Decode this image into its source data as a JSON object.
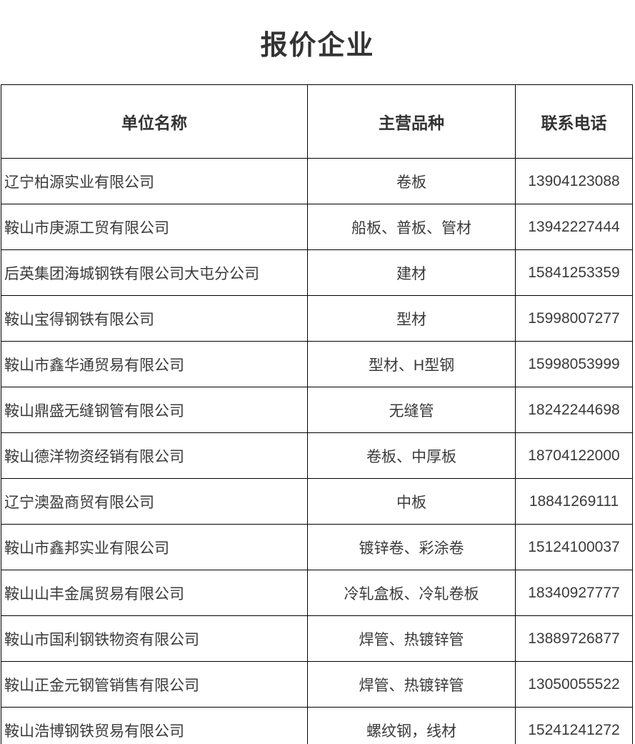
{
  "title": "报价企业",
  "colors": {
    "border": "#000000",
    "text": "#333333",
    "background": "#ffffff"
  },
  "table": {
    "headers": {
      "company": "单位名称",
      "products": "主营品种",
      "phone": "联系电话"
    },
    "rows": [
      {
        "company": "辽宁柏源实业有限公司",
        "products": "卷板",
        "phone": "13904123088"
      },
      {
        "company": "鞍山市庚源工贸有限公司",
        "products": "船板、普板、管材",
        "phone": "13942227444"
      },
      {
        "company": "后英集团海城钢铁有限公司大屯分公司",
        "products": "建材",
        "phone": "15841253359"
      },
      {
        "company": "鞍山宝得钢铁有限公司",
        "products": "型材",
        "phone": "15998007277"
      },
      {
        "company": "鞍山市鑫华通贸易有限公司",
        "products": "型材、H型钢",
        "phone": "15998053999"
      },
      {
        "company": "鞍山鼎盛无缝钢管有限公司",
        "products": "无缝管",
        "phone": "18242244698"
      },
      {
        "company": "鞍山德洋物资经销有限公司",
        "products": "卷板、中厚板",
        "phone": "18704122000"
      },
      {
        "company": "辽宁澳盈商贸有限公司",
        "products": "中板",
        "phone": "18841269111"
      },
      {
        "company": "鞍山市鑫邦实业有限公司",
        "products": "镀锌卷、彩涂卷",
        "phone": "15124100037"
      },
      {
        "company": "鞍山山丰金属贸易有限公司",
        "products": "冷轧盒板、冷轧卷板",
        "phone": "18340927777"
      },
      {
        "company": "鞍山市国利钢铁物资有限公司",
        "products": "焊管、热镀锌管",
        "phone": "13889726877"
      },
      {
        "company": "鞍山正金元钢管销售有限公司",
        "products": "焊管、热镀锌管",
        "phone": "13050055522"
      },
      {
        "company": "鞍山浩博钢铁贸易有限公司",
        "products": "螺纹钢，线材",
        "phone": "15241241272"
      }
    ]
  }
}
